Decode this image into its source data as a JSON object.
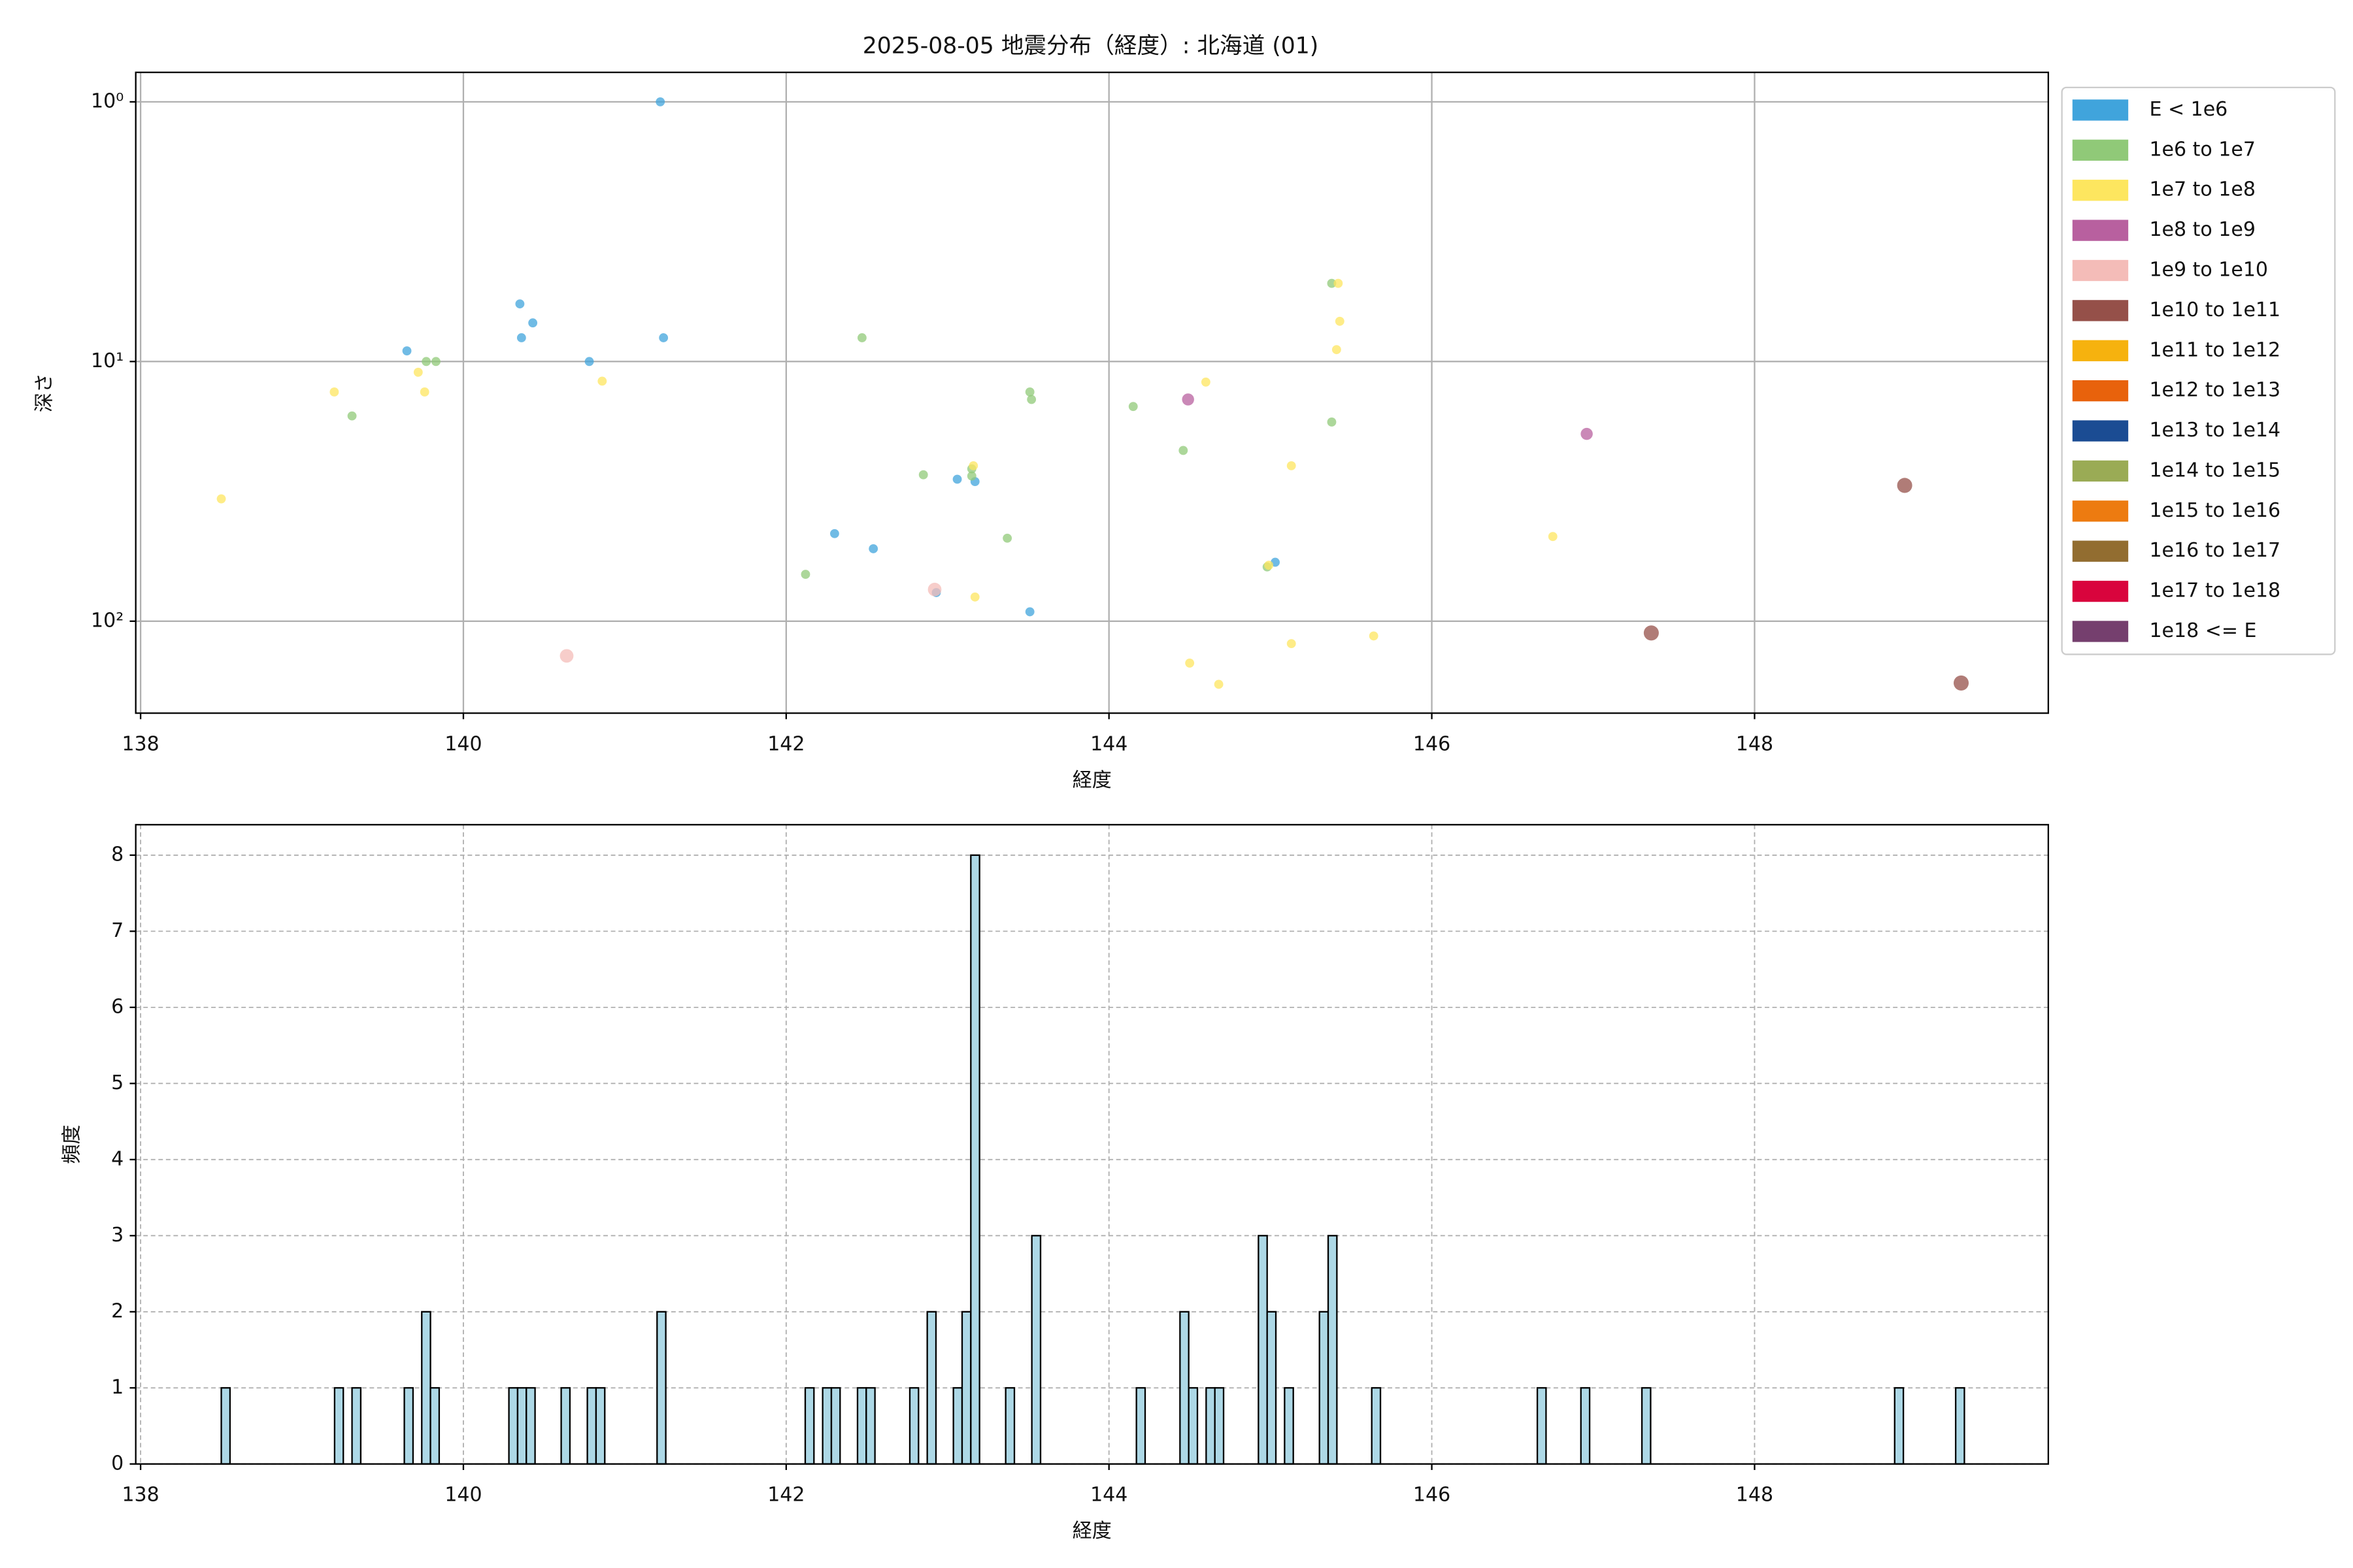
{
  "chart_data": [
    {
      "type": "scatter",
      "title": "2025-08-05 地震分布（経度）: 北海道 (01)",
      "xlabel": "経度",
      "ylabel": "深さ",
      "xlim": [
        137.97,
        149.82
      ],
      "ylim": [
        0.77,
        226
      ],
      "log_y": true,
      "invert_y": true,
      "xticks": [
        138,
        140,
        142,
        144,
        146,
        148
      ],
      "yticks": [
        {
          "value": 1,
          "label": "10⁰"
        },
        {
          "value": 10,
          "label": "10¹"
        },
        {
          "value": 100,
          "label": "10²"
        }
      ],
      "grid": true,
      "legend": "outside upper right",
      "series": [
        {
          "name": "E < 1e6",
          "color": "#40a4dc",
          "x": [
            141.22,
            140.35,
            140.43,
            140.36,
            141.24,
            139.65,
            140.78,
            143.06,
            143.17,
            142.3,
            142.54,
            142.93,
            143.51,
            145.03
          ],
          "values": [
            1.0,
            6.0,
            7.1,
            8.1,
            8.1,
            9.1,
            10,
            28.4,
            29,
            46,
            52.6,
            77.6,
            92,
            59.3
          ]
        },
        {
          "name": "1e6 to 1e7",
          "color": "#90c978",
          "x": [
            139.31,
            139.77,
            139.83,
            142.47,
            142.85,
            143.15,
            143.15,
            142.12,
            143.37,
            143.51,
            143.52,
            144.15,
            144.46,
            145.38,
            145.38,
            144.98
          ],
          "values": [
            16.2,
            10,
            10,
            8.1,
            27.3,
            25.9,
            27.6,
            66,
            47.9,
            13.1,
            14,
            14.9,
            22,
            5.0,
            17.1,
            61.8
          ]
        },
        {
          "name": "1e7 to 1e8",
          "color": "#fde65f",
          "x": [
            138.5,
            139.2,
            139.72,
            139.76,
            140.86,
            143.16,
            143.17,
            144.5,
            144.6,
            144.68,
            145.13,
            145.13,
            145.42,
            145.43,
            145.41,
            145.64,
            146.75,
            144.99
          ],
          "values": [
            33.8,
            13.1,
            11,
            13.1,
            11.9,
            25.2,
            80.7,
            145,
            12,
            175,
            25.2,
            122,
            5.0,
            7.0,
            9.0,
            114,
            47.2,
            60.9
          ]
        },
        {
          "name": "1e8 to 1e9",
          "color": "#b8609f",
          "x": [
            144.49,
            146.96
          ],
          "values": [
            14,
            19
          ]
        },
        {
          "name": "1e9 to 1e10",
          "color": "#f4bcb8",
          "x": [
            140.64,
            142.92
          ],
          "values": [
            136,
            75.5
          ]
        },
        {
          "name": "1e10 to 1e11",
          "color": "#955049",
          "x": [
            148.93,
            147.36,
            149.28
          ],
          "values": [
            30,
            111,
            173
          ]
        },
        {
          "name": "1e11 to 1e12",
          "color": "#f6b20e",
          "x": [],
          "values": []
        },
        {
          "name": "1e12 to 1e13",
          "color": "#e8620c",
          "x": [],
          "values": []
        },
        {
          "name": "1e13 to 1e14",
          "color": "#1b4c93",
          "x": [],
          "values": []
        },
        {
          "name": "1e14 to 1e15",
          "color": "#9aab55",
          "x": [],
          "values": []
        },
        {
          "name": "1e15 to 1e16",
          "color": "#ed7b10",
          "x": [],
          "values": []
        },
        {
          "name": "1e16 to 1e17",
          "color": "#926d30",
          "x": [],
          "values": []
        },
        {
          "name": "1e17 to 1e18",
          "color": "#d9043d",
          "x": [],
          "values": []
        },
        {
          "name": "1e18 <= E",
          "color": "#753f6e",
          "x": [],
          "values": []
        }
      ]
    },
    {
      "type": "histogram",
      "xlabel": "経度",
      "ylabel": "頻度",
      "xlim": [
        137.97,
        149.82
      ],
      "ylim": [
        0,
        8.4
      ],
      "xticks": [
        138,
        140,
        142,
        144,
        146,
        148
      ],
      "yticks": [
        0,
        1,
        2,
        3,
        4,
        5,
        6,
        7,
        8
      ],
      "grid": true,
      "grid_style": "dashed",
      "color": "#add8e6",
      "edgecolor": "#000000",
      "bins": [
        138.5,
        138.554,
        139.202,
        139.256,
        139.31,
        139.364,
        139.634,
        139.688,
        139.742,
        139.796,
        139.85,
        140.282,
        140.336,
        140.39,
        140.444,
        140.606,
        140.66,
        140.768,
        140.822,
        140.876,
        141.2,
        141.254,
        142.118,
        142.172,
        142.226,
        142.28,
        142.334,
        142.442,
        142.496,
        142.55,
        142.766,
        142.82,
        142.874,
        142.928,
        143.036,
        143.09,
        143.144,
        143.198,
        143.36,
        143.414,
        143.522,
        143.576,
        144.17,
        144.224,
        144.44,
        144.494,
        144.548,
        144.602,
        144.656,
        144.71,
        144.926,
        144.98,
        145.034,
        145.088,
        145.142,
        145.304,
        145.358,
        145.412,
        145.628,
        145.682,
        146.654,
        146.708,
        146.924,
        146.978,
        147.302,
        147.356,
        148.868,
        148.922,
        149.246,
        149.3
      ],
      "counts": [
        1,
        0,
        1,
        0,
        1,
        0,
        1,
        0,
        2,
        1,
        0,
        1,
        1,
        1,
        0,
        1,
        0,
        1,
        1,
        0,
        2,
        0,
        1,
        0,
        1,
        1,
        0,
        1,
        1,
        0,
        1,
        0,
        2,
        0,
        1,
        2,
        8,
        0,
        1,
        0,
        3,
        0,
        1,
        0,
        2,
        1,
        0,
        1,
        1,
        0,
        3,
        2,
        0,
        1,
        0,
        2,
        3,
        0,
        1,
        0,
        1,
        0,
        1,
        0,
        1,
        0,
        1,
        0,
        1
      ]
    }
  ]
}
